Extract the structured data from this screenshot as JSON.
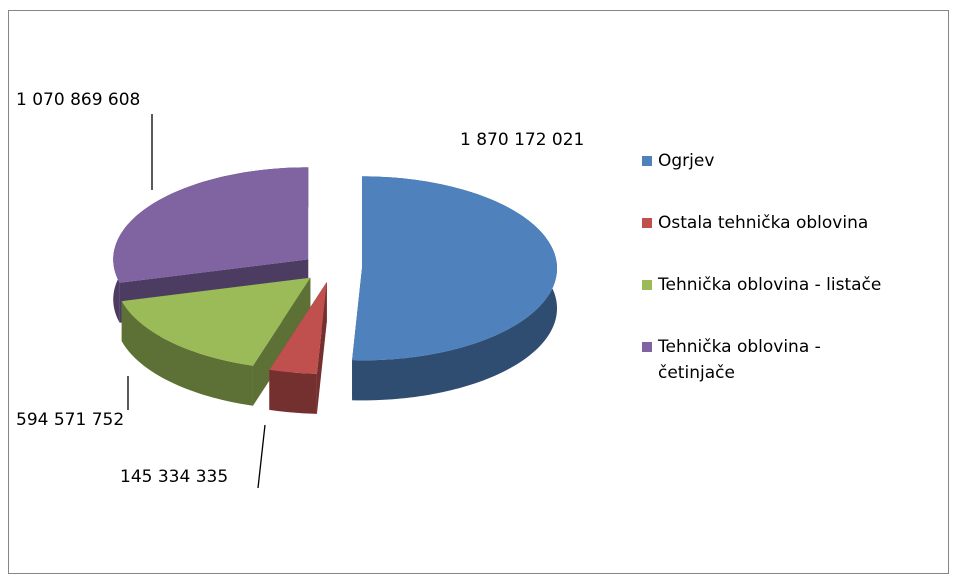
{
  "chart_data": {
    "type": "pie3d",
    "categories": [
      "Ogrjev",
      "Ostala tehnička oblovina",
      "Tehnička oblovina - listače",
      "Tehnička oblovina - četinjače"
    ],
    "values": [
      1870172021,
      145334335,
      594571752,
      1070869608
    ],
    "value_labels": [
      "1 870 172 021",
      "145 334 335",
      "594 571 752",
      "1 070 869 608"
    ],
    "colors": [
      "#4f81bd",
      "#c0504d",
      "#9bbb59",
      "#8064a2"
    ],
    "legend": "right"
  }
}
